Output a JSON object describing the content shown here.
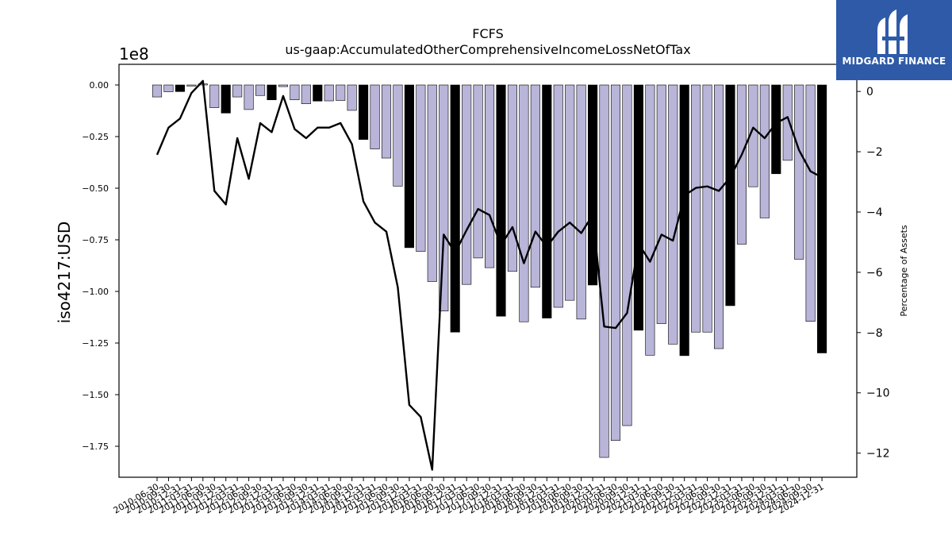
{
  "chart_data": {
    "type": "bar",
    "title": "FCFS",
    "subtitle": "us-gaap:AccumulatedOtherComprehensiveIncomeLossNetOfTax",
    "ylabel": "iso4217:USD",
    "ylabel_right": "Percentage of Assets",
    "y_offset_text": "1e8",
    "ylim": [
      -190000000.0,
      10000000.0
    ],
    "ylim_right": [
      -12.8,
      0.9
    ],
    "yticks": [
      0,
      -25000000.0,
      -50000000.0,
      -75000000.0,
      -100000000.0,
      -125000000.0,
      -150000000.0,
      -175000000.0
    ],
    "ytick_labels": [
      "0.00",
      "−0.25",
      "−0.50",
      "−0.75",
      "−1.00",
      "−1.25",
      "−1.50",
      "−1.75"
    ],
    "yticks_right": [
      0,
      -2,
      -4,
      -6,
      -8,
      -10,
      -12
    ],
    "ytick_labels_right": [
      "0",
      "−2",
      "−4",
      "−6",
      "−8",
      "−10",
      "−12"
    ],
    "grid": false,
    "categories": [
      "2010-06-30",
      "2010-09-30",
      "2010-12-31",
      "2011-03-31",
      "2011-06-30",
      "2011-09-30",
      "2011-12-31",
      "2012-03-31",
      "2012-06-30",
      "2012-09-30",
      "2012-12-31",
      "2013-03-31",
      "2013-06-30",
      "2013-09-30",
      "2013-12-31",
      "2014-03-31",
      "2014-06-30",
      "2014-09-30",
      "2014-12-31",
      "2015-03-31",
      "2015-06-30",
      "2015-09-30",
      "2015-12-31",
      "2016-03-31",
      "2016-06-30",
      "2016-09-30",
      "2016-12-31",
      "2017-03-31",
      "2017-06-30",
      "2017-09-30",
      "2017-12-31",
      "2018-03-31",
      "2018-06-30",
      "2018-09-30",
      "2018-12-31",
      "2019-03-31",
      "2019-06-30",
      "2019-09-30",
      "2019-12-31",
      "2020-03-31",
      "2020-06-30",
      "2020-09-30",
      "2020-12-31",
      "2021-03-31",
      "2021-06-30",
      "2021-09-30",
      "2021-12-31",
      "2022-03-31",
      "2022-06-30",
      "2022-09-30",
      "2022-12-31",
      "2023-03-31",
      "2023-06-30",
      "2023-09-30",
      "2023-12-31",
      "2024-03-31",
      "2024-06-30",
      "2024-09-30",
      "2024-12-31"
    ],
    "series": [
      {
        "values": [
          -5800000,
          -3300000,
          -3200000,
          -500000,
          500000,
          -11000000,
          -13600000,
          -5800000,
          -11900000,
          -5100000,
          -7200000,
          -800000,
          -7200000,
          -9100000,
          -7800000,
          -7700000,
          -7500000,
          -12300000,
          -26400000,
          -31000000,
          -35400000,
          -49000000,
          -78800000,
          -80600000,
          -95200000,
          -109500000,
          -119700000,
          -96600000,
          -83800000,
          -88500000,
          -112000000,
          -90300000,
          -114700000,
          -98000000,
          -112900000,
          -107700000,
          -104300000,
          -113400000,
          -96900000,
          -180400000,
          -172200000,
          -165000000,
          -118800000,
          -130900000,
          -115600000,
          -125500000,
          -131100000,
          -119700000,
          -119700000,
          -127700000,
          -106900000,
          -77100000,
          -49300000,
          -64400000,
          -43000000,
          -36500000,
          -84400000,
          -114500000,
          -129800000
        ],
        "colors": [
          "#b8b5d9",
          "#b8b5d9",
          "#000000",
          "#b8b5d9",
          "#b8b5d9",
          "#b8b5d9",
          "#000000",
          "#b8b5d9",
          "#b8b5d9",
          "#b8b5d9",
          "#000000",
          "#b8b5d9",
          "#b8b5d9",
          "#b8b5d9",
          "#000000",
          "#b8b5d9",
          "#b8b5d9",
          "#b8b5d9",
          "#000000",
          "#b8b5d9",
          "#b8b5d9",
          "#b8b5d9",
          "#000000",
          "#b8b5d9",
          "#b8b5d9",
          "#b8b5d9",
          "#000000",
          "#b8b5d9",
          "#b8b5d9",
          "#b8b5d9",
          "#000000",
          "#b8b5d9",
          "#b8b5d9",
          "#b8b5d9",
          "#000000",
          "#b8b5d9",
          "#b8b5d9",
          "#b8b5d9",
          "#000000",
          "#b8b5d9",
          "#b8b5d9",
          "#b8b5d9",
          "#000000",
          "#b8b5d9",
          "#b8b5d9",
          "#b8b5d9",
          "#000000",
          "#b8b5d9",
          "#b8b5d9",
          "#b8b5d9",
          "#000000",
          "#b8b5d9",
          "#b8b5d9",
          "#b8b5d9",
          "#000000",
          "#b8b5d9",
          "#b8b5d9",
          "#b8b5d9",
          "#000000"
        ]
      },
      {
        "axis": "right",
        "type": "line",
        "color": "#000000",
        "values": [
          -2.1,
          -1.2,
          -0.9,
          -0.05,
          0.35,
          -3.3,
          -3.75,
          -1.55,
          -2.9,
          -1.05,
          -1.35,
          -0.15,
          -1.25,
          -1.55,
          -1.2,
          -1.2,
          -1.05,
          -1.75,
          -3.65,
          -4.35,
          -4.65,
          -6.5,
          -10.4,
          -10.8,
          -12.55,
          -4.75,
          -5.35,
          -4.6,
          -3.9,
          -4.1,
          -5.1,
          -4.5,
          -5.7,
          -4.65,
          -5.15,
          -4.65,
          -4.35,
          -4.7,
          -4.1,
          -7.8,
          -7.85,
          -7.35,
          -5.05,
          -5.65,
          -4.75,
          -4.95,
          -3.45,
          -3.2,
          -3.15,
          -3.3,
          -2.85,
          -2.1,
          -1.2,
          -1.55,
          -1.05,
          -0.85,
          -1.95,
          -2.65,
          -2.85
        ]
      }
    ]
  },
  "logo": {
    "text": "MIDGARD FINANCE",
    "bg_color": "#2f5aa8"
  }
}
